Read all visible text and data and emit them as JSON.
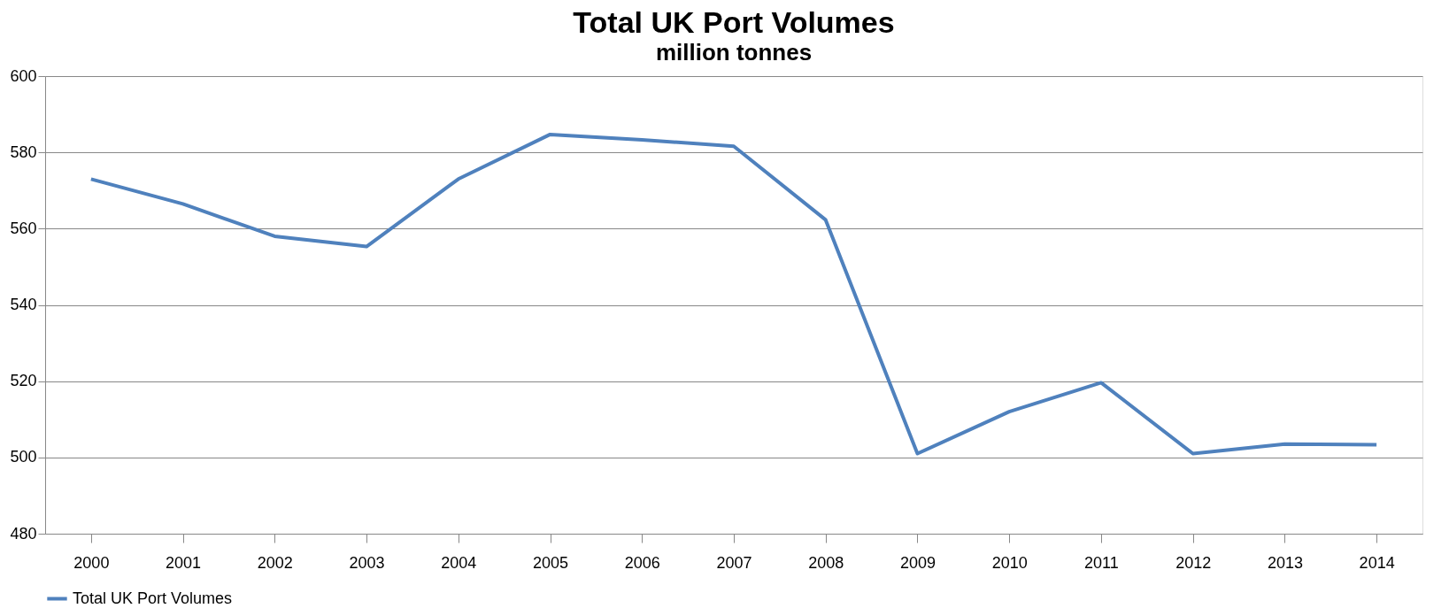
{
  "chart_data": {
    "type": "line",
    "title": "Total UK Port Volumes",
    "subtitle": "million tonnes",
    "categories": [
      "2000",
      "2001",
      "2002",
      "2003",
      "2004",
      "2005",
      "2006",
      "2007",
      "2008",
      "2009",
      "2010",
      "2011",
      "2012",
      "2013",
      "2014"
    ],
    "series": [
      {
        "name": "Total UK Port Volumes",
        "color": "#4f81bd",
        "values": [
          573,
          566.5,
          558,
          555.3,
          573,
          584.7,
          583.3,
          581.6,
          562.3,
          501,
          512,
          519.6,
          501,
          503.5,
          503.3
        ]
      }
    ],
    "ylim": [
      480,
      600
    ],
    "yticks": [
      480,
      500,
      520,
      540,
      560,
      580,
      600
    ],
    "grid": "y",
    "legend": "bottom",
    "marker": "none",
    "line_style": "solid"
  }
}
